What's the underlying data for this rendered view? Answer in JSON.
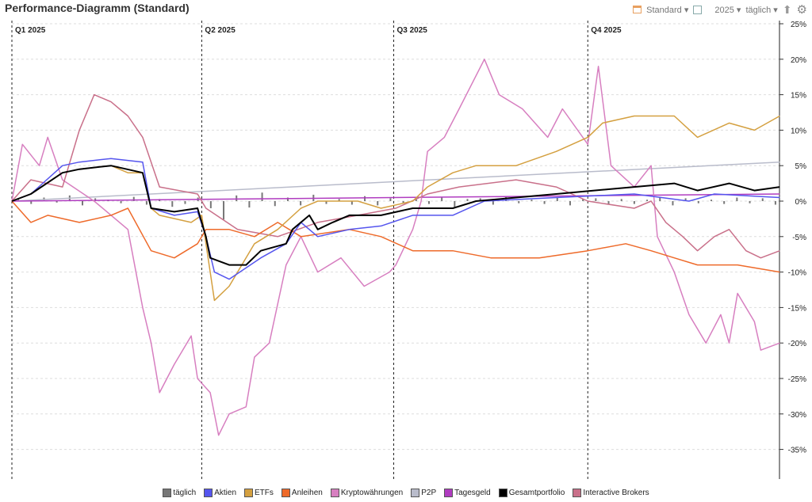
{
  "header": {
    "title": "Performance-Diagramm (Standard)",
    "view": "Standard",
    "year": "2025",
    "interval": "täglich",
    "icons": [
      "calendar-icon",
      "window-icon",
      "export-icon",
      "gear-icon"
    ]
  },
  "chart_data": {
    "type": "line",
    "title": "Performance-Diagramm (Standard)",
    "x_unit": "day of year 2025",
    "xlim": [
      0,
      365
    ],
    "ylim": [
      -39,
      25
    ],
    "y_ticks": [
      "25%",
      "20%",
      "15%",
      "10%",
      "5%",
      "0%",
      "-5%",
      "-10%",
      "-15%",
      "-20%",
      "-25%",
      "-30%",
      "-35%"
    ],
    "y_tick_values": [
      25,
      20,
      15,
      10,
      5,
      0,
      -5,
      -10,
      -15,
      -20,
      -25,
      -30,
      -35
    ],
    "quarters": [
      {
        "label": "Q1 2025",
        "day": 0
      },
      {
        "label": "Q2 2025",
        "day": 90
      },
      {
        "label": "Q3 2025",
        "day": 181
      },
      {
        "label": "Q4 2025",
        "day": 273
      }
    ],
    "legend_position": "bottom",
    "bars": {
      "name": "täglich",
      "color": "#777777",
      "values": [
        0.3,
        -0.4,
        0.5,
        -0.2,
        0.8,
        -0.6,
        0.4,
        0.2,
        -0.3,
        0.6,
        -0.5,
        0.3,
        -0.8,
        -0.4,
        0.5,
        -1,
        -2.6,
        0.8,
        -0.9,
        1.2,
        -0.7,
        0.5,
        -0.6,
        0.9,
        -0.4,
        0.3,
        -0.5,
        0.7,
        -0.6,
        0.4,
        -0.3,
        0.5,
        -0.4,
        0.6,
        -0.8,
        0.3,
        0.4,
        -0.5,
        0.6,
        -0.3,
        0.2,
        -0.4,
        0.5,
        -0.6,
        0.3,
        0.4,
        -0.5,
        0.3,
        -0.4,
        0.2,
        0.5,
        -0.6,
        0.4,
        -0.3,
        0.2,
        -0.4,
        0.5,
        -0.3,
        0.4,
        -0.5
      ]
    },
    "series": [
      {
        "name": "P2P",
        "color": "#b9bccb",
        "points": [
          [
            0,
            0
          ],
          [
            364,
            5.5
          ]
        ]
      },
      {
        "name": "Tagesgeld",
        "color": "#b03cc0",
        "points": [
          [
            0,
            0
          ],
          [
            364,
            1
          ]
        ]
      },
      {
        "name": "Kryptowährungen",
        "color": "#d77fc0",
        "points": [
          [
            0,
            0
          ],
          [
            5,
            8
          ],
          [
            13,
            5
          ],
          [
            17,
            9
          ],
          [
            24,
            3
          ],
          [
            39,
            0
          ],
          [
            55,
            -4
          ],
          [
            62,
            -15
          ],
          [
            66,
            -20
          ],
          [
            70,
            -27
          ],
          [
            77,
            -23
          ],
          [
            85,
            -19
          ],
          [
            88,
            -25
          ],
          [
            94,
            -27
          ],
          [
            98,
            -33
          ],
          [
            103,
            -30
          ],
          [
            111,
            -29
          ],
          [
            115,
            -22
          ],
          [
            122,
            -20
          ],
          [
            130,
            -9
          ],
          [
            137,
            -5
          ],
          [
            145,
            -10
          ],
          [
            156,
            -8
          ],
          [
            167,
            -12
          ],
          [
            179,
            -10
          ],
          [
            182,
            -9
          ],
          [
            190,
            -4
          ],
          [
            194,
            0
          ],
          [
            197,
            7
          ],
          [
            205,
            9
          ],
          [
            212,
            13
          ],
          [
            224,
            20
          ],
          [
            231,
            15
          ],
          [
            242,
            13
          ],
          [
            254,
            9
          ],
          [
            261,
            13
          ],
          [
            273,
            8
          ],
          [
            278,
            19
          ],
          [
            284,
            5
          ],
          [
            295,
            2
          ],
          [
            303,
            5
          ],
          [
            306,
            -5
          ],
          [
            314,
            -10
          ],
          [
            321,
            -16
          ],
          [
            329,
            -20
          ],
          [
            336,
            -16
          ],
          [
            340,
            -20
          ],
          [
            344,
            -13
          ],
          [
            352,
            -17
          ],
          [
            355,
            -21
          ],
          [
            364,
            -20
          ]
        ]
      },
      {
        "name": "Interactive Brokers",
        "color": "#c9708a",
        "points": [
          [
            0,
            0
          ],
          [
            9,
            3
          ],
          [
            24,
            2
          ],
          [
            32,
            10
          ],
          [
            39,
            15
          ],
          [
            47,
            14
          ],
          [
            55,
            12
          ],
          [
            62,
            9
          ],
          [
            70,
            2
          ],
          [
            88,
            1
          ],
          [
            92,
            -1
          ],
          [
            107,
            -4
          ],
          [
            126,
            -5
          ],
          [
            145,
            -3
          ],
          [
            164,
            -2
          ],
          [
            182,
            -1
          ],
          [
            197,
            1
          ],
          [
            212,
            2
          ],
          [
            239,
            3
          ],
          [
            258,
            2
          ],
          [
            273,
            0
          ],
          [
            295,
            -1
          ],
          [
            303,
            0
          ],
          [
            310,
            -3
          ],
          [
            318,
            -5
          ],
          [
            325,
            -7
          ],
          [
            333,
            -5
          ],
          [
            340,
            -4
          ],
          [
            348,
            -7
          ],
          [
            355,
            -8
          ],
          [
            364,
            -7
          ]
        ]
      },
      {
        "name": "Anleihen",
        "color": "#ee6a2a",
        "points": [
          [
            0,
            0
          ],
          [
            9,
            -3
          ],
          [
            17,
            -2
          ],
          [
            32,
            -3
          ],
          [
            47,
            -2
          ],
          [
            55,
            -1
          ],
          [
            66,
            -7
          ],
          [
            77,
            -8
          ],
          [
            88,
            -6
          ],
          [
            92,
            -4
          ],
          [
            103,
            -4
          ],
          [
            115,
            -5
          ],
          [
            126,
            -3
          ],
          [
            137,
            -5
          ],
          [
            160,
            -4
          ],
          [
            175,
            -5
          ],
          [
            190,
            -7
          ],
          [
            209,
            -7
          ],
          [
            227,
            -8
          ],
          [
            250,
            -8
          ],
          [
            273,
            -7
          ],
          [
            291,
            -6
          ],
          [
            303,
            -7
          ],
          [
            314,
            -8
          ],
          [
            325,
            -9
          ],
          [
            344,
            -9
          ],
          [
            364,
            -10
          ]
        ]
      },
      {
        "name": "ETFs",
        "color": "#d4a040",
        "points": [
          [
            0,
            0
          ],
          [
            9,
            1
          ],
          [
            24,
            4
          ],
          [
            32,
            4.5
          ],
          [
            47,
            5
          ],
          [
            55,
            4
          ],
          [
            62,
            4
          ],
          [
            66,
            -1
          ],
          [
            70,
            -2
          ],
          [
            85,
            -3
          ],
          [
            90,
            -2
          ],
          [
            96,
            -14
          ],
          [
            103,
            -12
          ],
          [
            115,
            -6
          ],
          [
            126,
            -4
          ],
          [
            137,
            -1
          ],
          [
            145,
            0
          ],
          [
            164,
            0
          ],
          [
            175,
            -1
          ],
          [
            190,
            0
          ],
          [
            197,
            2
          ],
          [
            209,
            4
          ],
          [
            220,
            5
          ],
          [
            239,
            5
          ],
          [
            258,
            7
          ],
          [
            273,
            9
          ],
          [
            280,
            11
          ],
          [
            295,
            12
          ],
          [
            314,
            12
          ],
          [
            325,
            9
          ],
          [
            340,
            11
          ],
          [
            352,
            10
          ],
          [
            364,
            12
          ]
        ]
      },
      {
        "name": "Aktien",
        "color": "#5555ee",
        "points": [
          [
            0,
            0
          ],
          [
            9,
            1
          ],
          [
            24,
            5
          ],
          [
            32,
            5.5
          ],
          [
            47,
            6
          ],
          [
            62,
            5.5
          ],
          [
            66,
            -1
          ],
          [
            77,
            -2
          ],
          [
            88,
            -1.5
          ],
          [
            92,
            -5
          ],
          [
            96,
            -10
          ],
          [
            103,
            -11
          ],
          [
            118,
            -8
          ],
          [
            130,
            -6
          ],
          [
            137,
            -3
          ],
          [
            145,
            -5
          ],
          [
            160,
            -4
          ],
          [
            175,
            -3.5
          ],
          [
            190,
            -2
          ],
          [
            209,
            -2
          ],
          [
            224,
            0
          ],
          [
            258,
            0.5
          ],
          [
            295,
            1
          ],
          [
            321,
            0
          ],
          [
            333,
            1
          ],
          [
            364,
            0.5
          ]
        ]
      },
      {
        "name": "Gesamtportfolio",
        "color": "#000000",
        "points": [
          [
            0,
            0
          ],
          [
            9,
            1
          ],
          [
            24,
            4
          ],
          [
            32,
            4.5
          ],
          [
            47,
            5
          ],
          [
            62,
            4
          ],
          [
            66,
            -1
          ],
          [
            77,
            -1.5
          ],
          [
            88,
            -1
          ],
          [
            92,
            -5
          ],
          [
            94,
            -8
          ],
          [
            103,
            -9
          ],
          [
            111,
            -9
          ],
          [
            118,
            -7
          ],
          [
            130,
            -6
          ],
          [
            133,
            -4
          ],
          [
            141,
            -2
          ],
          [
            145,
            -4
          ],
          [
            152,
            -3
          ],
          [
            160,
            -2
          ],
          [
            175,
            -2
          ],
          [
            190,
            -1
          ],
          [
            209,
            -1
          ],
          [
            220,
            0
          ],
          [
            239,
            0.5
          ],
          [
            258,
            1
          ],
          [
            276,
            1.5
          ],
          [
            295,
            2
          ],
          [
            314,
            2.5
          ],
          [
            325,
            1.5
          ],
          [
            340,
            2.5
          ],
          [
            352,
            1.5
          ],
          [
            364,
            2
          ]
        ]
      }
    ]
  }
}
